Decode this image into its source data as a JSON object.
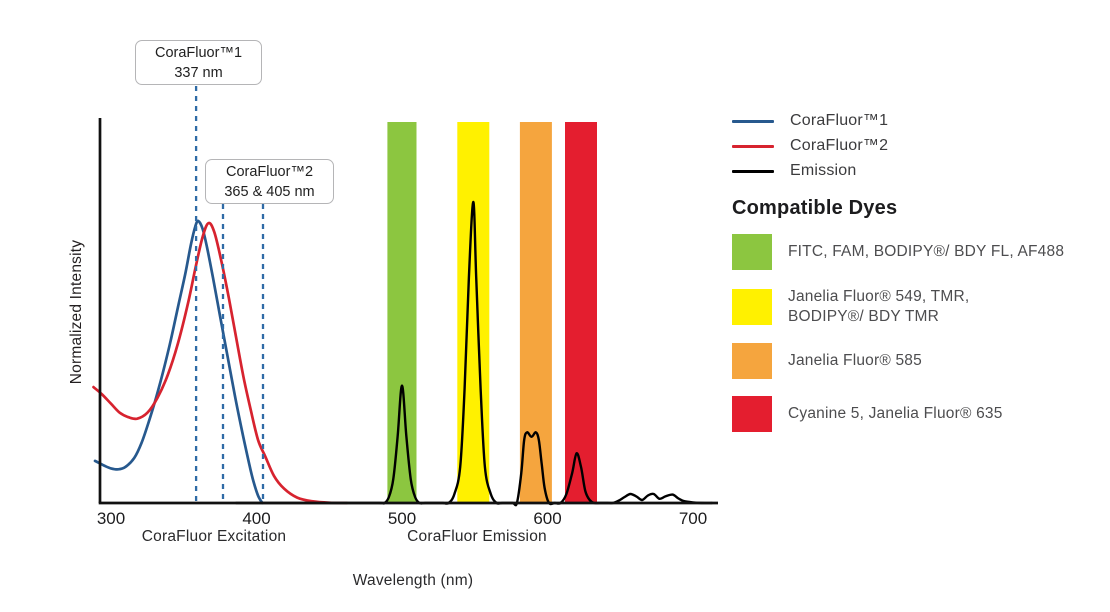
{
  "figure": {
    "ylabel": "Normalized Intensity",
    "xlabel": "Wavelength (nm)",
    "excitation_caption": "CoraFluor Excitation",
    "emission_caption": "CoraFluor Emission"
  },
  "annotations": [
    {
      "title": "CoraFluor™1",
      "subtitle": "337 nm",
      "depicted_lines_nm": [
        358.5
      ]
    },
    {
      "title": "CoraFluor™2",
      "subtitle": "365 & 405 nm",
      "depicted_lines_nm": [
        377,
        404.5
      ]
    }
  ],
  "legend": {
    "items": [
      {
        "label": "CoraFluor™1",
        "color": "#27598e"
      },
      {
        "label": "CoraFluor™2",
        "color": "#d7232f"
      },
      {
        "label": "Emission",
        "color": "#000000"
      }
    ]
  },
  "compatible_dyes": {
    "heading": "Compatible Dyes",
    "items": [
      {
        "color": "#8cc640",
        "label": "FITC, FAM, BODIPY®/ BDY FL, AF488"
      },
      {
        "color": "#fff100",
        "label": "Janelia Fluor® 549, TMR,\nBODIPY®/ BDY TMR"
      },
      {
        "color": "#f5a53e",
        "label": "Janelia Fluor® 585"
      },
      {
        "color": "#e41e2f",
        "label": "Cyanine 5, Janelia Fluor® 635"
      }
    ]
  },
  "chart_data": {
    "type": "line",
    "title": "CoraFluor excitation and emission spectra with compatible dyes",
    "xlabel": "Wavelength (nm)",
    "ylabel": "Normalized Intensity",
    "x_ticks": [
      300,
      400,
      500,
      600,
      700
    ],
    "x_range_nm": [
      292,
      718
    ],
    "y_range": [
      0,
      1.27
    ],
    "grid": false,
    "legend_position": "right",
    "bands": [
      {
        "range_nm": [
          490,
          510
        ],
        "color": "#8cc640",
        "dyes": "FITC, FAM, BODIPY®/ BDY FL, AF488"
      },
      {
        "range_nm": [
          538,
          560
        ],
        "color": "#fff100",
        "dyes": "Janelia Fluor® 549, TMR, BODIPY®/ BDY TMR"
      },
      {
        "range_nm": [
          581,
          603
        ],
        "color": "#f5a53e",
        "dyes": "Janelia Fluor® 585"
      },
      {
        "range_nm": [
          612,
          634
        ],
        "color": "#e41e2f",
        "dyes": "Cyanine 5, Janelia Fluor® 635"
      }
    ],
    "series": [
      {
        "name": "CoraFluor™1 excitation",
        "color": "#27598e",
        "points": [
          [
            289,
            0.14
          ],
          [
            295,
            0.125
          ],
          [
            300,
            0.115
          ],
          [
            305,
            0.112
          ],
          [
            310,
            0.12
          ],
          [
            316,
            0.15
          ],
          [
            321,
            0.2
          ],
          [
            326,
            0.27
          ],
          [
            331,
            0.35
          ],
          [
            336,
            0.44
          ],
          [
            341,
            0.54
          ],
          [
            346,
            0.65
          ],
          [
            351,
            0.76
          ],
          [
            355,
            0.86
          ],
          [
            358,
            0.92
          ],
          [
            360,
            0.937
          ],
          [
            363,
            0.91
          ],
          [
            366,
            0.85
          ],
          [
            370,
            0.75
          ],
          [
            375,
            0.62
          ],
          [
            380,
            0.49
          ],
          [
            385,
            0.36
          ],
          [
            390,
            0.24
          ],
          [
            395,
            0.13
          ],
          [
            398,
            0.07
          ],
          [
            401,
            0.025
          ],
          [
            404,
            0
          ]
        ]
      },
      {
        "name": "CoraFluor™2 excitation",
        "color": "#d7232f",
        "points": [
          [
            288,
            0.385
          ],
          [
            294,
            0.36
          ],
          [
            300,
            0.33
          ],
          [
            306,
            0.3
          ],
          [
            312,
            0.285
          ],
          [
            318,
            0.28
          ],
          [
            325,
            0.3
          ],
          [
            332,
            0.35
          ],
          [
            339,
            0.425
          ],
          [
            346,
            0.53
          ],
          [
            353,
            0.665
          ],
          [
            358,
            0.78
          ],
          [
            363,
            0.885
          ],
          [
            367,
            0.93
          ],
          [
            371,
            0.9
          ],
          [
            376,
            0.8
          ],
          [
            381,
            0.68
          ],
          [
            386,
            0.55
          ],
          [
            391,
            0.42
          ],
          [
            396,
            0.31
          ],
          [
            401,
            0.21
          ],
          [
            406,
            0.155
          ],
          [
            412,
            0.09
          ],
          [
            419,
            0.048
          ],
          [
            428,
            0.018
          ],
          [
            438,
            0.006
          ],
          [
            450,
            0.001
          ],
          [
            462,
            0
          ]
        ]
      },
      {
        "name": "Emission",
        "color": "#000000",
        "points": [
          [
            386,
            0
          ],
          [
            420,
            0
          ],
          [
            460,
            0
          ],
          [
            484,
            0
          ],
          [
            488,
            0
          ],
          [
            491,
            0.02
          ],
          [
            494,
            0.08
          ],
          [
            497,
            0.22
          ],
          [
            500,
            0.39
          ],
          [
            503,
            0.22
          ],
          [
            506,
            0.08
          ],
          [
            509,
            0.02
          ],
          [
            512,
            0
          ],
          [
            516,
            0
          ],
          [
            522,
            0
          ],
          [
            528,
            0
          ],
          [
            532,
            0
          ],
          [
            536,
            0.03
          ],
          [
            540,
            0.12
          ],
          [
            543,
            0.38
          ],
          [
            546,
            0.75
          ],
          [
            549,
            1.0
          ],
          [
            551,
            0.75
          ],
          [
            554,
            0.38
          ],
          [
            557,
            0.12
          ],
          [
            561,
            0.03
          ],
          [
            565,
            0
          ],
          [
            569,
            0
          ],
          [
            576,
            0
          ],
          [
            579,
            0
          ],
          [
            582,
            0.1
          ],
          [
            584,
            0.21
          ],
          [
            586,
            0.235
          ],
          [
            589,
            0.22
          ],
          [
            592,
            0.235
          ],
          [
            594,
            0.21
          ],
          [
            596,
            0.13
          ],
          [
            598,
            0.05
          ],
          [
            601,
            0
          ],
          [
            605,
            0
          ],
          [
            609,
            0
          ],
          [
            613,
            0.03
          ],
          [
            617,
            0.1
          ],
          [
            620,
            0.165
          ],
          [
            623,
            0.12
          ],
          [
            626,
            0.04
          ],
          [
            629,
            0.01
          ],
          [
            632,
            0
          ],
          [
            636,
            0
          ],
          [
            641,
            0
          ],
          [
            645,
            0
          ],
          [
            649,
            0.008
          ],
          [
            653,
            0.02
          ],
          [
            657,
            0.03
          ],
          [
            661,
            0.022
          ],
          [
            665,
            0.01
          ],
          [
            669,
            0.025
          ],
          [
            673,
            0.03
          ],
          [
            677,
            0.014
          ],
          [
            681,
            0.022
          ],
          [
            686,
            0.028
          ],
          [
            690,
            0.015
          ],
          [
            694,
            0.006
          ],
          [
            700,
            0.002
          ],
          [
            706,
            0
          ],
          [
            713,
            0
          ]
        ]
      }
    ]
  }
}
